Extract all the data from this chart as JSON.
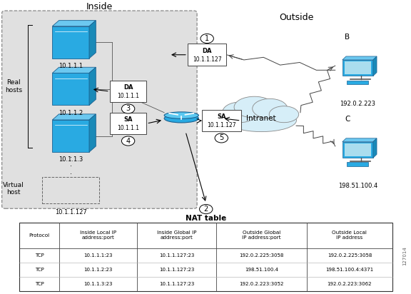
{
  "title_inside": "Inside",
  "title_outside": "Outside",
  "nat_table_title": "NAT table",
  "hosts": [
    "10.1.1.1",
    "10.1.1.2",
    "10.1.1.3"
  ],
  "virtual_host": "10.1.1.127",
  "host_B": "B",
  "host_C": "C",
  "host_B_ip": "192.0.2.223",
  "host_C_ip": "198.51.100.4",
  "da_inside_label": "DA",
  "da_inside_value": "10.1.1.1",
  "sa_inside_label": "SA",
  "sa_inside_value": "10.1.1.1",
  "da_outside_label": "DA",
  "da_outside_value": "10.1.1.127",
  "sa_outside_label": "SA",
  "sa_outside_value": "10.1.1.127",
  "intranet_label": "Intranet",
  "real_hosts_label": "Real\nhosts",
  "virtual_host_label": "Virtual\nhost",
  "table_headers": [
    "Protocol",
    "Inside Local IP\naddress:port",
    "Inside Global IP\naddress:port",
    "Outside Global\nIP address:port",
    "Outside Local\nIP address"
  ],
  "table_rows": [
    [
      "TCP",
      "10.1.1.1:23",
      "10.1.1.127:23",
      "192.0.2.225:3058",
      "192.0.2.225:3058"
    ],
    [
      "TCP",
      "10.1.1.2:23",
      "10.1.1.127:23",
      "198.51.100.4",
      "198.51.100.4:4371"
    ],
    [
      "TCP",
      "10.1.1.3:23",
      "10.1.1.127:23",
      "192.0.2.223:3052",
      "192.0.2.223:3062"
    ]
  ],
  "bg_color": "#ffffff",
  "inside_bg": "#e0e0e0",
  "host_color_front": "#29aae2",
  "host_color_top": "#6cc8f0",
  "host_color_right": "#1a8ab8",
  "router_color": "#29aae2",
  "cloud_color": "#d6eef8",
  "computer_color": "#29aae2",
  "side_label": "127014",
  "fig_w": 5.76,
  "fig_h": 4.12,
  "dpi": 100
}
